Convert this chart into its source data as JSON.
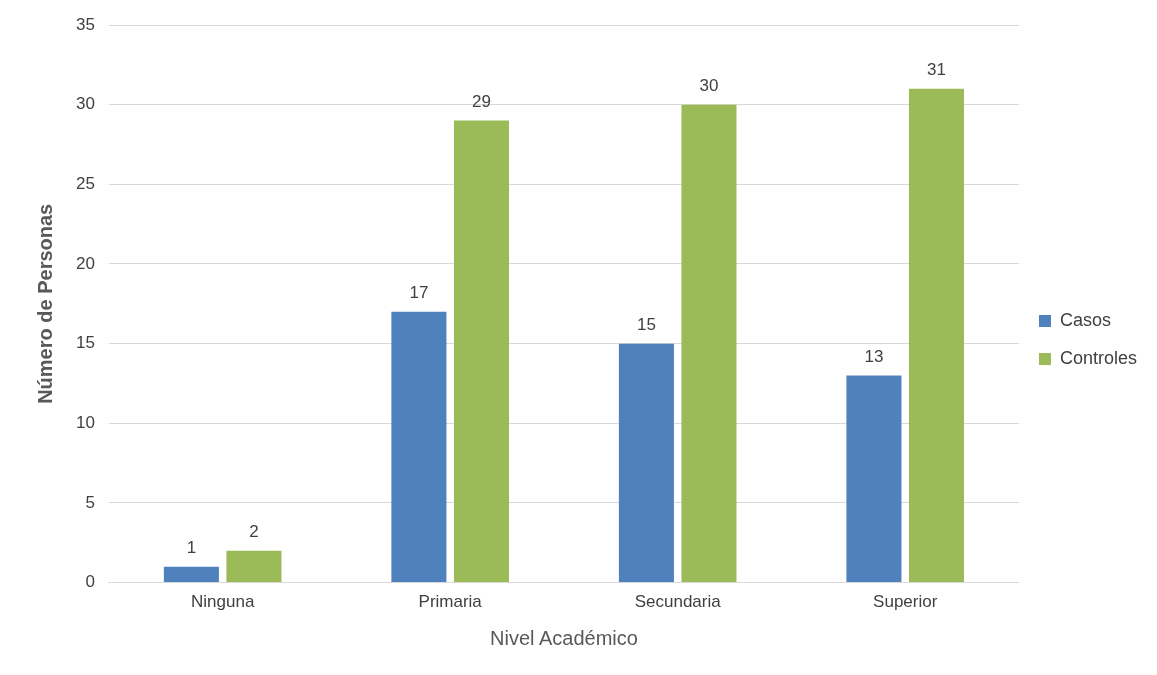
{
  "chart_data": {
    "type": "bar",
    "xlabel": "Nivel Académico",
    "ylabel": "Número de Personas",
    "categories": [
      "Ninguna",
      "Primaria",
      "Secundaria",
      "Superior"
    ],
    "series": [
      {
        "name": "Casos",
        "color": "#4f81bd",
        "values": [
          1,
          17,
          15,
          13
        ]
      },
      {
        "name": "Controles",
        "color": "#9bbb59",
        "values": [
          2,
          29,
          30,
          31
        ]
      }
    ],
    "ylim": [
      0,
      35
    ],
    "yticks": [
      0,
      5,
      10,
      15,
      20,
      25,
      30,
      35
    ],
    "grid": "y",
    "legend": "right",
    "data_labels": true
  }
}
